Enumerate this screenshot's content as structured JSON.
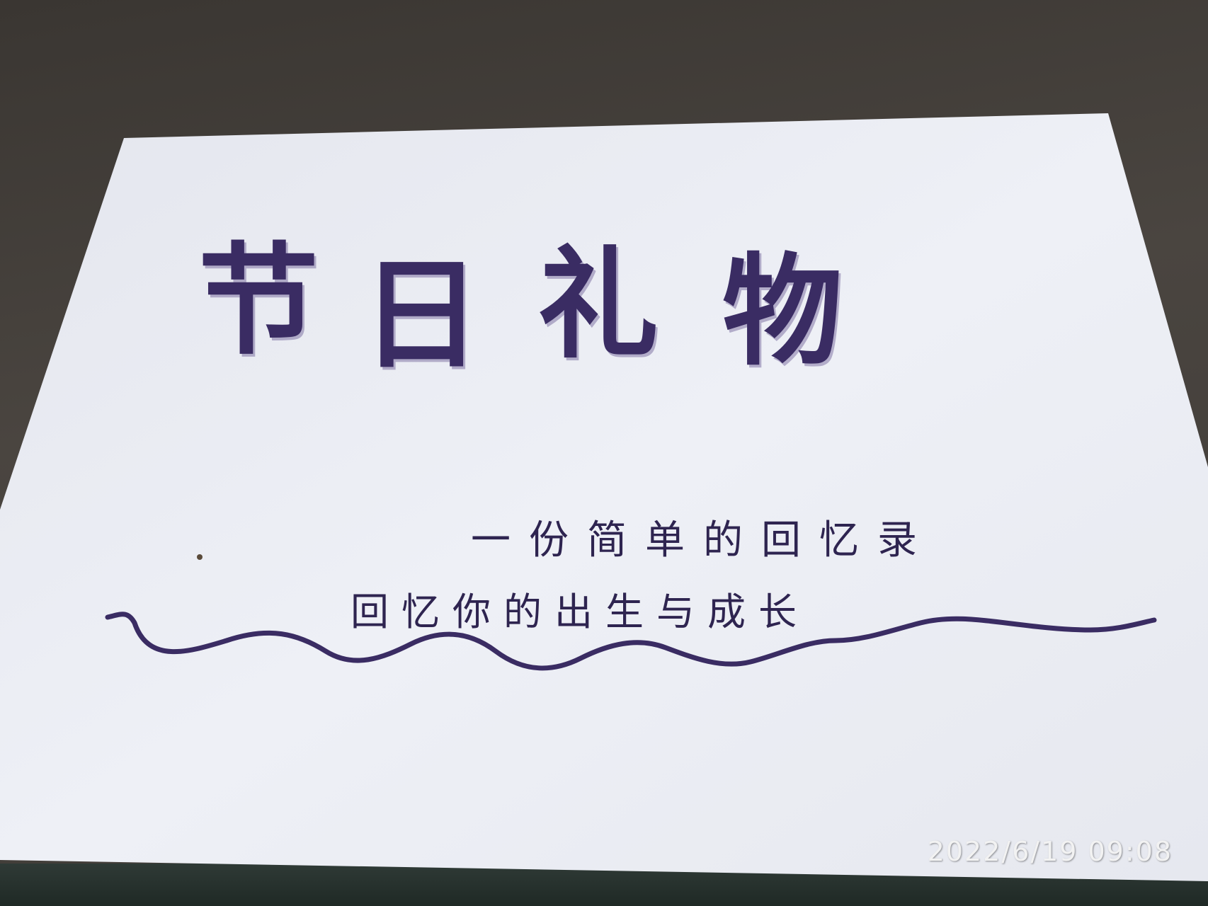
{
  "photo": {
    "paper_color": "#eceef4",
    "ink_color": "#3a2c63",
    "title": {
      "chars": [
        "节",
        "日",
        "礼",
        "物"
      ]
    },
    "subtitle": "一份简单的回忆录",
    "subline": "回忆你的出生与成长",
    "timestamp": "2022/6/19  09:08"
  }
}
